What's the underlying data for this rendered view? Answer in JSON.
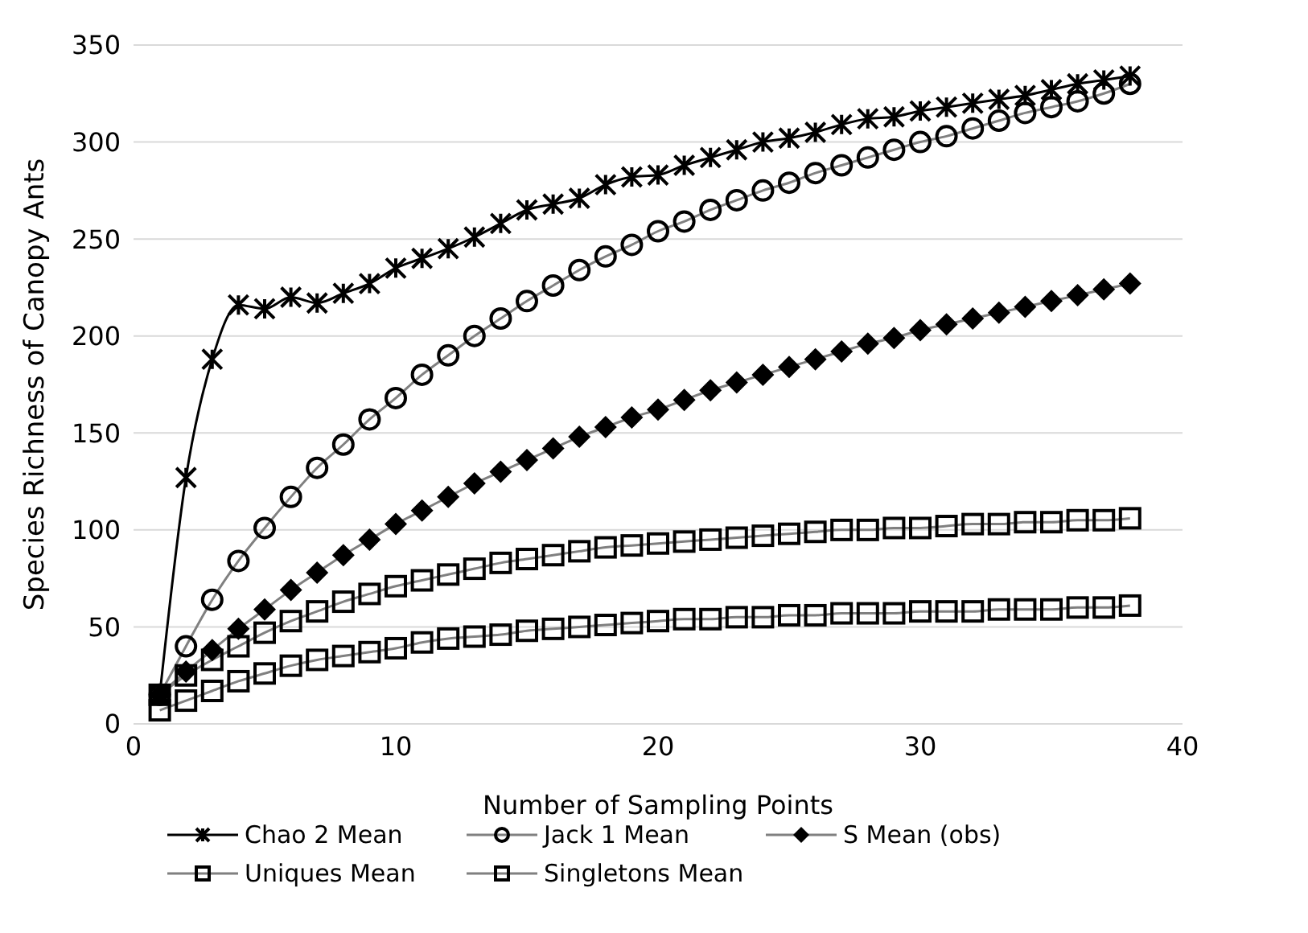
{
  "chart_data": {
    "type": "line",
    "xlabel": "Number of Sampling Points",
    "ylabel": "Species Richness of Canopy Ants",
    "x": [
      1,
      2,
      3,
      4,
      5,
      6,
      7,
      8,
      9,
      10,
      11,
      12,
      13,
      14,
      15,
      16,
      17,
      18,
      19,
      20,
      21,
      22,
      23,
      24,
      25,
      26,
      27,
      28,
      29,
      30,
      31,
      32,
      33,
      34,
      35,
      36,
      37,
      38
    ],
    "xlim": [
      0,
      40
    ],
    "xticks": [
      0,
      10,
      20,
      30,
      40
    ],
    "ylim": [
      0,
      350
    ],
    "yticks": [
      0,
      50,
      100,
      150,
      200,
      250,
      300,
      350
    ],
    "grid": "y",
    "legend": "bottom",
    "series": [
      {
        "name": "Chao 2 Mean",
        "color": "#000000",
        "marker": "cross",
        "values": [
          15,
          127,
          188,
          216,
          214,
          220,
          217,
          222,
          227,
          235,
          240,
          245,
          251,
          258,
          265,
          268,
          271,
          278,
          282,
          283,
          288,
          292,
          296,
          300,
          302,
          305,
          309,
          312,
          313,
          316,
          318,
          320,
          322,
          324,
          327,
          330,
          332,
          334
        ]
      },
      {
        "name": "Jack 1 Mean",
        "color": "#000000",
        "marker": "circle",
        "values": [
          15,
          40,
          64,
          84,
          101,
          117,
          132,
          144,
          157,
          168,
          180,
          190,
          200,
          209,
          218,
          226,
          234,
          241,
          247,
          254,
          259,
          265,
          270,
          275,
          279,
          284,
          288,
          292,
          296,
          300,
          303,
          307,
          311,
          315,
          318,
          321,
          325,
          330
        ]
      },
      {
        "name": "S Mean (obs)",
        "color": "#000000",
        "marker": "diamond",
        "values": [
          15,
          27,
          38,
          49,
          59,
          69,
          78,
          87,
          95,
          103,
          110,
          117,
          124,
          130,
          136,
          142,
          148,
          153,
          158,
          162,
          167,
          172,
          176,
          180,
          184,
          188,
          192,
          196,
          199,
          203,
          206,
          209,
          212,
          215,
          218,
          221,
          224,
          227
        ]
      },
      {
        "name": "Uniques Mean",
        "color": "#000000",
        "marker": "square",
        "values": [
          15,
          25,
          33,
          40,
          47,
          53,
          58,
          63,
          67,
          71,
          74,
          77,
          80,
          83,
          85,
          87,
          89,
          91,
          92,
          93,
          94,
          95,
          96,
          97,
          98,
          99,
          100,
          100,
          101,
          101,
          102,
          103,
          103,
          104,
          104,
          105,
          105,
          106
        ]
      },
      {
        "name": "Singletons Mean",
        "color": "#000000",
        "marker": "square",
        "values": [
          7,
          12,
          17,
          22,
          26,
          30,
          33,
          35,
          37,
          39,
          42,
          44,
          45,
          46,
          48,
          49,
          50,
          51,
          52,
          53,
          54,
          54,
          55,
          55,
          56,
          56,
          57,
          57,
          57,
          58,
          58,
          58,
          59,
          59,
          59,
          60,
          60,
          61
        ]
      }
    ]
  }
}
